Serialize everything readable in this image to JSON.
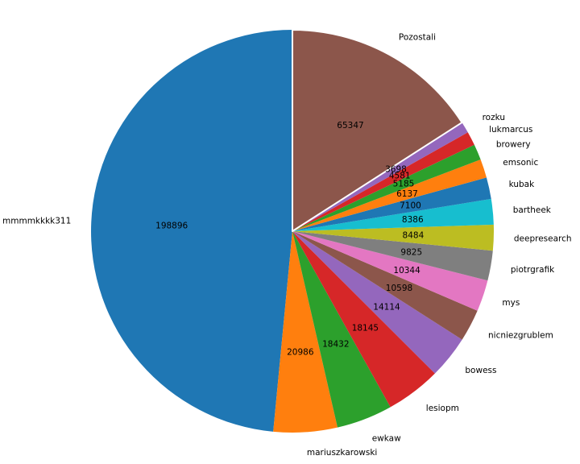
{
  "figure": {
    "background": "#ffffff"
  },
  "chart_data": {
    "type": "pie",
    "title": "",
    "start_angle": 90,
    "direction": "counterclockwise",
    "label_distance": 1.1,
    "pct_distance": 0.6,
    "value_label_color": "#000000",
    "name_label_color": "#000000",
    "slices": [
      {
        "label": "mmmmkkkk311",
        "value": 198896,
        "color": "#1f77b4"
      },
      {
        "label": "mariuszkarowski",
        "value": 20986,
        "color": "#ff7f0e"
      },
      {
        "label": "ewkaw",
        "value": 18432,
        "color": "#2ca02c"
      },
      {
        "label": "lesiopm",
        "value": 18145,
        "color": "#d62728"
      },
      {
        "label": "bowess",
        "value": 14114,
        "color": "#9467bd"
      },
      {
        "label": "nicniezgrublem",
        "value": 10598,
        "color": "#8c564b"
      },
      {
        "label": "mys",
        "value": 10344,
        "color": "#e377c2"
      },
      {
        "label": "piotrgrafik",
        "value": 9825,
        "color": "#7f7f7f"
      },
      {
        "label": "deepresearch",
        "value": 8484,
        "color": "#bcbd22"
      },
      {
        "label": "bartheek",
        "value": 8386,
        "color": "#17becf"
      },
      {
        "label": "kubak",
        "value": 7100,
        "color": "#1f77b4"
      },
      {
        "label": "emsonic",
        "value": 6137,
        "color": "#ff7f0e"
      },
      {
        "label": "browery",
        "value": 5185,
        "color": "#2ca02c"
      },
      {
        "label": "lukmarcus",
        "value": 4581,
        "color": "#d62728"
      },
      {
        "label": "rozku",
        "value": 3698,
        "color": "#9467bd"
      },
      {
        "label": "Pozostali",
        "value": 65347,
        "color": "#8c564b",
        "edgecolor": "#ffffff"
      }
    ]
  }
}
